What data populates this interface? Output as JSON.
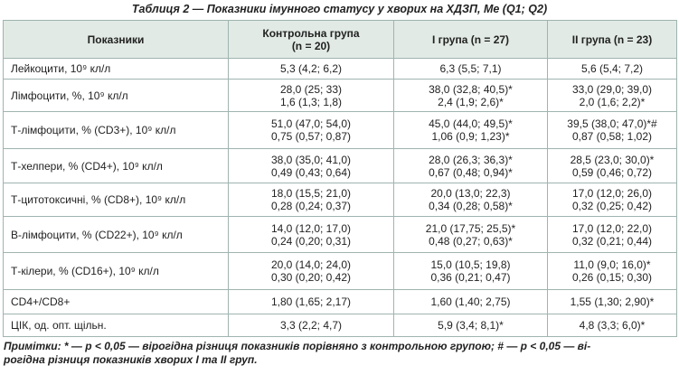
{
  "title": "Таблиця 2 — Показники імунного статусу у хворих на ХДЗП, Ме (Q1; Q2)",
  "table": {
    "header": [
      [
        "Показники"
      ],
      [
        "Контрольна група",
        "(n = 20)"
      ],
      [
        "І група (n = 27)"
      ],
      [
        "ІІ група (n = 23)"
      ]
    ],
    "rows": [
      [
        [
          "Лейкоцити, 10⁹ кл/л"
        ],
        [
          "5,3 (4,2; 6,2)"
        ],
        [
          "6,3 (5,5; 7,1)"
        ],
        [
          "5,6 (5,4; 7,2)"
        ]
      ],
      [
        [
          "Лімфоцити, %, 10⁹ кл/л"
        ],
        [
          "28,0 (25; 33)",
          "1,6 (1,3; 1,8)"
        ],
        [
          "38,0 (32,8; 40,5)*",
          "2,4 (1,9; 2,6)*"
        ],
        [
          "33,0 (29,0; 39,0)",
          "2,0 (1,6; 2,2)*"
        ]
      ],
      [
        [
          "Т-лімфоцити, % (CD3+), 10⁹ кл/л"
        ],
        [
          "51,0 (47,0; 54,0)",
          "0,75 (0,57; 0,87)"
        ],
        [
          "45,0 (44,0; 49,5)*",
          "1,06 (0,9; 1,23)*"
        ],
        [
          "39,5 (38,0; 47,0)*#",
          "0,87 (0,58; 1,02)"
        ]
      ],
      [
        [
          "Т-хелпери, % (CD4+), 10⁹ кл/л"
        ],
        [
          "38,0 (35,0; 41,0)",
          "0,49 (0,43; 0,64)"
        ],
        [
          "28,0 (26,3; 36,3)*",
          "0,67 (0,48; 0,94)*"
        ],
        [
          "28,5 (23,0; 30,0)*",
          "0,59 (0,46; 0,72)"
        ]
      ],
      [
        [
          "Т-цитотоксичні, % (CD8+), 10⁹ кл/л"
        ],
        [
          "18,0 (15,5; 21,0)",
          "0,28 (0,24; 0,37)"
        ],
        [
          "20,0 (13,0; 22,3)",
          "0,34 (0,28; 0,58)*"
        ],
        [
          "17,0 (12,0; 26,0)",
          "0,32 (0,25; 0,42)"
        ]
      ],
      [
        [
          "В-лімфоцити, % (CD22+), 10⁹ кл/л"
        ],
        [
          "14,0 (12,0; 17,0)",
          "0,24 (0,20; 0,31)"
        ],
        [
          "21,0 (17,75; 25,5)*",
          "0,48 (0,27; 0,63)*"
        ],
        [
          "17,0 (12,0; 22,0)",
          "0,32 (0,21; 0,44)"
        ]
      ],
      [
        [
          "Т-кілери, % (CD16+), 10⁹ кл/л"
        ],
        [
          "20,0 (14,0; 24,0)",
          "0,30 (0,20; 0,42)"
        ],
        [
          "15,0 (10,5; 19,8)",
          "0,36 (0,21; 0,47)"
        ],
        [
          "11,0 (9,0; 16,0)*",
          "0,26 (0,15; 0,30)"
        ]
      ],
      [
        [
          "CD4+/CD8+"
        ],
        [
          "1,80 (1,65; 2,17)"
        ],
        [
          "1,60 (1,40; 2,75)"
        ],
        [
          "1,55 (1,30; 2,90)*"
        ]
      ],
      [
        [
          "ЦІК, од. опт. щільн."
        ],
        [
          "3,3 (2,2; 4,7)"
        ],
        [
          "5,9 (3,4; 8,1)*"
        ],
        [
          "4,8 (3,3; 6,0)*"
        ]
      ]
    ]
  },
  "notes": [
    "Примітки: * — р < 0,05 — вірогідна різниця показників порівняно з контрольною групою; # — р < 0,05 — ві-",
    "рогідна різниця показників хворих І та ІІ груп."
  ]
}
